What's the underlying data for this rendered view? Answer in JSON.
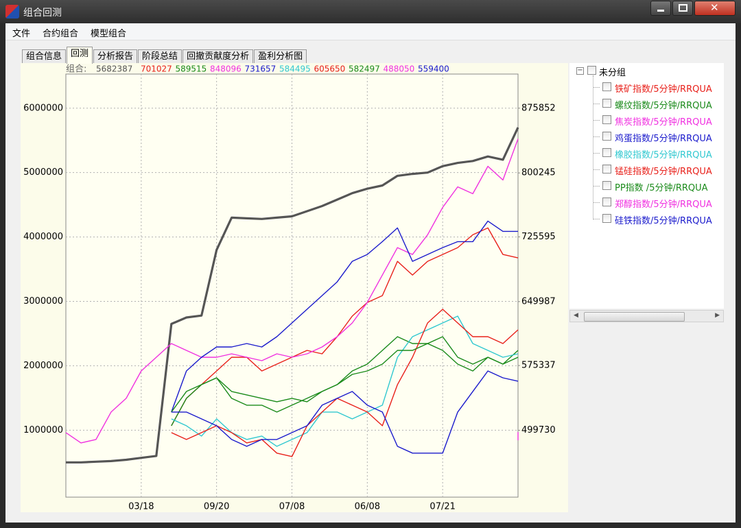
{
  "window": {
    "title": "组合回测"
  },
  "menu": [
    "文件",
    "合约组合",
    "模型组合"
  ],
  "tabs": [
    "组合信息",
    "回测",
    "分析报告",
    "阶段总结",
    "回撤贡献度分析",
    "盈利分析图"
  ],
  "active_tab": 1,
  "chart_data": {
    "type": "line",
    "summary_label": "组合:",
    "categories": [
      null,
      null,
      null,
      null,
      null,
      "03/18",
      null,
      null,
      null,
      null,
      "09/20",
      null,
      null,
      null,
      null,
      "07/08",
      null,
      null,
      null,
      null,
      "06/08",
      null,
      null,
      null,
      null,
      "07/21",
      null,
      null,
      null,
      null,
      null
    ],
    "ylim": [
      -40000,
      6530000
    ],
    "yticks": [
      1000000,
      2000000,
      3000000,
      4000000,
      5000000,
      6000000
    ],
    "y2lim": [
      421630,
      915700
    ],
    "y2ticks": [
      499730,
      575337,
      649987,
      725595,
      800245,
      875852
    ],
    "grid": true,
    "series": [
      {
        "summary": 5682387,
        "color": "#555555",
        "width": 3.2,
        "values": [
          500000,
          500000,
          510000,
          520000,
          540000,
          570000,
          600000,
          2650000,
          2750000,
          2780000,
          3800000,
          4300000,
          4290000,
          4280000,
          4300000,
          4320000,
          4400000,
          4480000,
          4580000,
          4680000,
          4750000,
          4800000,
          4950000,
          4980000,
          5000000,
          5100000,
          5150000,
          5180000,
          5250000,
          5200000,
          5700000
        ]
      },
      {
        "summary": 701027,
        "color": "#e8201a",
        "width": 1.4,
        "axis": "y2",
        "values": [
          null,
          null,
          null,
          null,
          null,
          null,
          null,
          505000,
          537000,
          553000,
          569000,
          585000,
          585000,
          569000,
          577000,
          585000,
          593000,
          589000,
          609000,
          633000,
          649000,
          657000,
          697000,
          681000,
          697000,
          705000,
          713000,
          728000,
          736000,
          705000,
          701000
        ]
      },
      {
        "summary": 589515,
        "color": "#1a8a1a",
        "width": 1.4,
        "axis": "y2",
        "values": [
          null,
          null,
          null,
          null,
          null,
          null,
          null,
          505000,
          537000,
          553000,
          561000,
          545000,
          541000,
          537000,
          533000,
          537000,
          533000,
          545000,
          553000,
          569000,
          577000,
          593000,
          609000,
          601000,
          601000,
          609000,
          585000,
          577000,
          585000,
          577000,
          593000
        ]
      },
      {
        "summary": 848096,
        "color": "#f030e0",
        "width": 1.4,
        "axis": "y2",
        "values": [
          497000,
          485000,
          489000,
          521000,
          537000,
          569000,
          585000,
          601000,
          593000,
          585000,
          585000,
          589000,
          585000,
          581000,
          589000,
          585000,
          589000,
          597000,
          609000,
          625000,
          649000,
          681000,
          713000,
          705000,
          728000,
          760000,
          784000,
          776000,
          808000,
          792000,
          840000
        ]
      },
      {
        "summary": 731657,
        "color": "#1a1acc",
        "width": 1.4,
        "axis": "y2",
        "values": [
          null,
          null,
          null,
          null,
          null,
          null,
          null,
          521000,
          569000,
          585000,
          597000,
          597000,
          601000,
          597000,
          609000,
          625000,
          641000,
          657000,
          673000,
          697000,
          705000,
          720000,
          736000,
          697000,
          705000,
          713000,
          720000,
          720000,
          744000,
          732000,
          732000
        ]
      },
      {
        "summary": 584495,
        "color": "#30c8d0",
        "width": 1.4,
        "axis": "y2",
        "values": [
          null,
          null,
          null,
          null,
          null,
          null,
          null,
          513000,
          505000,
          493000,
          513000,
          497000,
          489000,
          493000,
          481000,
          489000,
          497000,
          521000,
          521000,
          513000,
          521000,
          529000,
          585000,
          609000,
          617000,
          625000,
          633000,
          601000,
          593000,
          585000,
          589000
        ]
      },
      {
        "summary": 605650,
        "color": "#e8201a",
        "width": 1.4,
        "axis": "y2",
        "values": [
          null,
          null,
          null,
          null,
          null,
          null,
          null,
          497000,
          489000,
          497000,
          505000,
          497000,
          485000,
          489000,
          473000,
          469000,
          505000,
          521000,
          537000,
          529000,
          521000,
          505000,
          553000,
          585000,
          625000,
          641000,
          625000,
          609000,
          609000,
          601000,
          617000
        ]
      },
      {
        "summary": 582497,
        "color": "#1a8a1a",
        "width": 1.4,
        "axis": "y2",
        "values": [
          null,
          null,
          null,
          null,
          null,
          null,
          null,
          521000,
          545000,
          553000,
          561000,
          537000,
          529000,
          529000,
          521000,
          529000,
          537000,
          545000,
          553000,
          565000,
          569000,
          577000,
          593000,
          593000,
          601000,
          593000,
          577000,
          569000,
          585000,
          577000,
          585000
        ]
      },
      {
        "summary": 488050,
        "color": "#f030e0",
        "width": 1.4,
        "axis": "y2",
        "values": [
          null,
          null,
          null,
          null,
          null,
          null,
          null,
          null,
          null,
          null,
          null,
          null,
          null,
          null,
          null,
          null,
          null,
          null,
          null,
          null,
          null,
          null,
          null,
          null,
          null,
          null,
          null,
          null,
          null,
          null,
          488000
        ]
      },
      {
        "summary": 559400,
        "color": "#1a1acc",
        "width": 1.4,
        "axis": "y2",
        "values": [
          null,
          null,
          null,
          null,
          null,
          null,
          null,
          521000,
          521000,
          513000,
          505000,
          489000,
          481000,
          489000,
          489000,
          497000,
          505000,
          529000,
          537000,
          545000,
          529000,
          521000,
          481000,
          473000,
          473000,
          473000,
          521000,
          545000,
          569000,
          561000,
          557000
        ]
      }
    ]
  },
  "tree": {
    "root": "未分组",
    "items": [
      {
        "label": "铁矿指数/5分钟/RRQUA",
        "color": "#e8201a"
      },
      {
        "label": "螺纹指数/5分钟/RRQUA",
        "color": "#1a8a1a"
      },
      {
        "label": "焦炭指数/5分钟/RRQUA",
        "color": "#f030e0"
      },
      {
        "label": "鸡蛋指数/5分钟/RRQUA",
        "color": "#1a1acc"
      },
      {
        "label": "橡胶指数/5分钟/RRQUA",
        "color": "#30c8d0"
      },
      {
        "label": "锰硅指数/5分钟/RRQUA",
        "color": "#e8201a"
      },
      {
        "label": "PP指数 /5分钟/RRQUA",
        "color": "#1a8a1a"
      },
      {
        "label": "郑醇指数/5分钟/RRQUA",
        "color": "#f030e0"
      },
      {
        "label": "硅铁指数/5分钟/RRQUA",
        "color": "#1a1acc"
      }
    ]
  }
}
